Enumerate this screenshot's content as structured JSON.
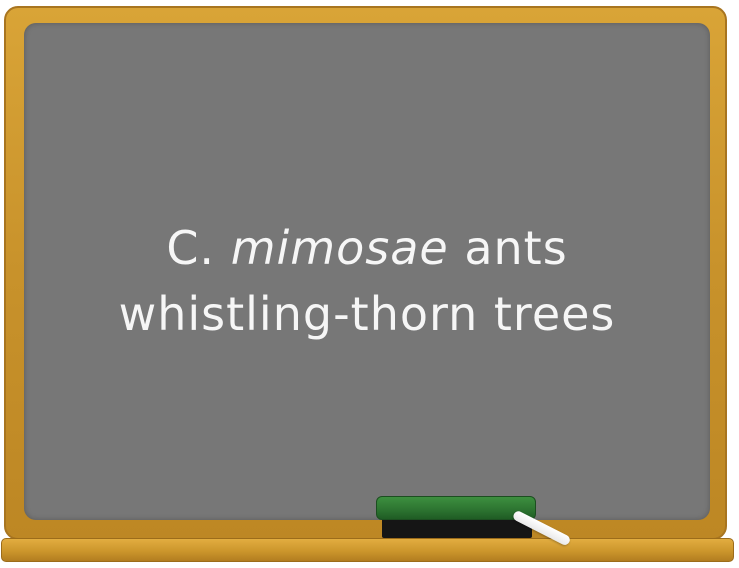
{
  "chalkboard": {
    "line1_prefix": "C.",
    "line1_species": "mimosae",
    "line1_suffix": "ants",
    "line2": "whistling-thorn trees"
  },
  "colors": {
    "board": "#777777",
    "frame": "#c8922b",
    "chalk_text": "#f6f6f6",
    "eraser_felt": "#2c7330",
    "eraser_base": "#151515"
  }
}
